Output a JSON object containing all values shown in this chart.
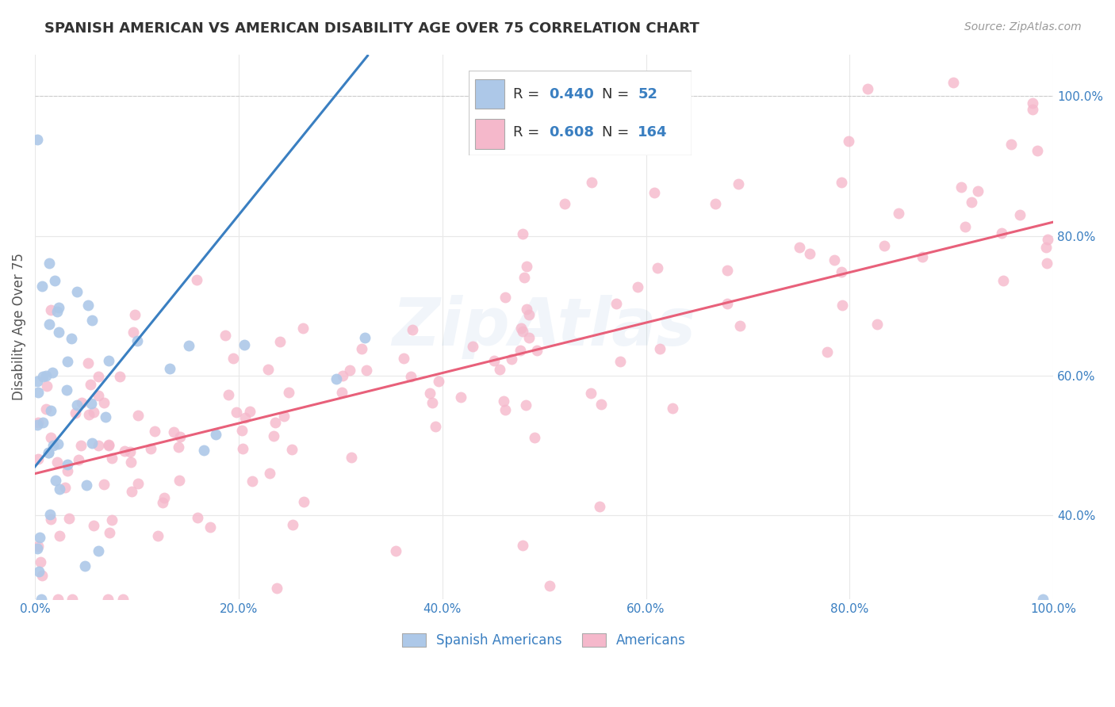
{
  "title": "SPANISH AMERICAN VS AMERICAN DISABILITY AGE OVER 75 CORRELATION CHART",
  "source": "Source: ZipAtlas.com",
  "ylabel": "Disability Age Over 75",
  "spanish_R": 0.44,
  "spanish_N": 52,
  "american_R": 0.608,
  "american_N": 164,
  "spanish_color": "#adc8e8",
  "american_color": "#f5b8cb",
  "spanish_line_color": "#3a7fc1",
  "american_line_color": "#e8607a",
  "background_color": "#ffffff",
  "legend_text_color": "#3a7fc1",
  "title_color": "#333333",
  "source_color": "#999999",
  "ylabel_color": "#555555",
  "tick_color": "#3a7fc1",
  "grid_color": "#e8e8e8",
  "watermark_color": "#3a7fc1",
  "watermark_alpha": 0.07,
  "xlim": [
    0,
    100
  ],
  "ylim_low": 28,
  "ylim_high": 106,
  "xtick_vals": [
    0,
    20,
    40,
    60,
    80,
    100
  ],
  "xtick_labels": [
    "0.0%",
    "20.0%",
    "40.0%",
    "60.0%",
    "80.0%",
    "100.0%"
  ],
  "ytick_vals": [
    40,
    60,
    80,
    100
  ],
  "ytick_labels": [
    "40.0%",
    "60.0%",
    "80.0%",
    "100.0%"
  ],
  "spanish_seed": 77,
  "american_seed": 88,
  "title_fontsize": 13,
  "source_fontsize": 10,
  "tick_fontsize": 11,
  "ylabel_fontsize": 12,
  "legend_fontsize": 13,
  "watermark_fontsize": 60,
  "scatter_size": 100,
  "trend_linewidth": 2.2
}
